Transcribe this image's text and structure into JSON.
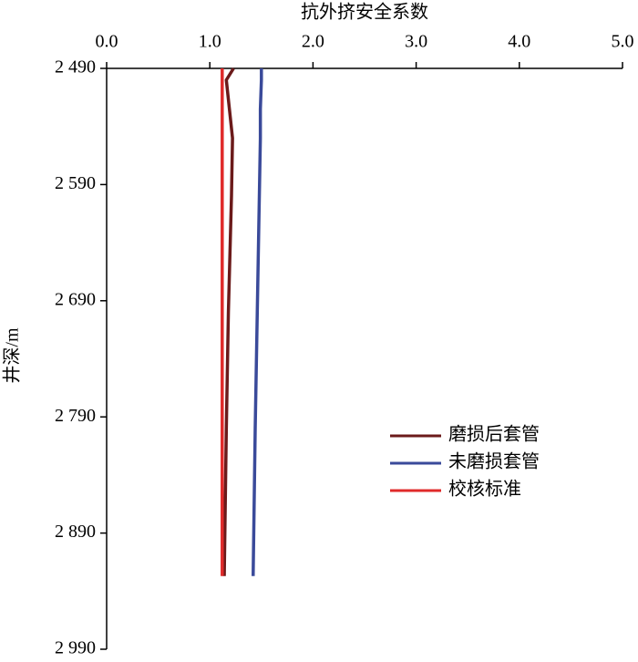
{
  "chart_data": {
    "type": "line",
    "title": "抗外挤安全系数",
    "y_label": "井深/m",
    "y": [
      2490,
      2500,
      2525,
      2550,
      2600,
      2700,
      2800,
      2927
    ],
    "series": [
      {
        "name": "磨损后套管",
        "color": "#6b1a1a",
        "values": [
          1.23,
          1.16,
          1.19,
          1.22,
          1.21,
          1.18,
          1.16,
          1.14
        ]
      },
      {
        "name": "未磨损套管",
        "color": "#3a4a9a",
        "values": [
          1.5,
          1.5,
          1.49,
          1.49,
          1.48,
          1.46,
          1.44,
          1.42
        ]
      },
      {
        "name": "校核标准",
        "color": "#e02a2a",
        "values": [
          1.12,
          1.12,
          1.12,
          1.12,
          1.12,
          1.12,
          1.12,
          1.12
        ]
      }
    ],
    "xlim": [
      0,
      5
    ],
    "xticks": [
      {
        "value": 0,
        "label": "0.0"
      },
      {
        "value": 1,
        "label": "1.0"
      },
      {
        "value": 2,
        "label": "2.0"
      },
      {
        "value": 3,
        "label": "3.0"
      },
      {
        "value": 4,
        "label": "4.0"
      },
      {
        "value": 5,
        "label": "5.0"
      }
    ],
    "ylim": [
      2490,
      2990
    ],
    "yticks": [
      {
        "value": 2490,
        "label": "2 490"
      },
      {
        "value": 2590,
        "label": "2 590"
      },
      {
        "value": 2690,
        "label": "2 690"
      },
      {
        "value": 2790,
        "label": "2 790"
      },
      {
        "value": 2890,
        "label": "2 890"
      },
      {
        "value": 2990,
        "label": "2 990"
      }
    ],
    "y_inverted": true,
    "legend": "right"
  }
}
